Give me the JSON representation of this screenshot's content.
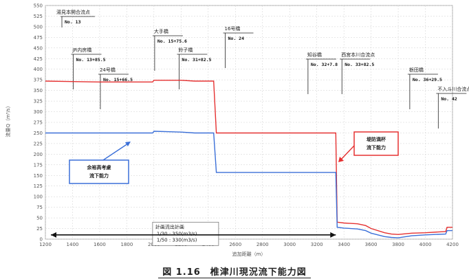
{
  "caption": "図 1.16　椎津川現況流下能力図",
  "colors": {
    "levee": "#e53030",
    "margin": "#3a6fd8",
    "frame": "#888888",
    "grid": "#cfcfcf"
  },
  "chart_data": {
    "type": "line",
    "xlabel": "追加距離（m）",
    "ylabel": "流量Q（m³/s）",
    "xlim": [
      1200,
      4200
    ],
    "ylim": [
      0,
      550
    ],
    "x_ticks": [
      "1200",
      "1400",
      "1600",
      "1800",
      "2000",
      "2200",
      "2400",
      "2600",
      "2800",
      "3000",
      "3200",
      "3400",
      "3600",
      "3800",
      "4000",
      "4200"
    ],
    "y_ticks": [
      "0",
      "25",
      "50",
      "75",
      "100",
      "125",
      "150",
      "175",
      "200",
      "225",
      "250",
      "275",
      "300",
      "325",
      "350",
      "375",
      "400",
      "425",
      "450",
      "475",
      "500",
      "525",
      "550"
    ],
    "series": [
      {
        "name": "堤防満杯流下能力",
        "x": [
          1200,
          1400,
          1600,
          1800,
          1990,
          2000,
          2200,
          2300,
          2440,
          2460,
          3340,
          3350,
          3400,
          3500,
          3560,
          3600,
          3700,
          3750,
          3800,
          3900,
          4000,
          4150,
          4160,
          4200
        ],
        "y": [
          372,
          371,
          370,
          370,
          370,
          374,
          374,
          372,
          372,
          250,
          250,
          40,
          38,
          36,
          32,
          25,
          15,
          12,
          11,
          14,
          15,
          18,
          28,
          28
        ]
      },
      {
        "name": "余裕高考慮流下能力",
        "x": [
          1200,
          1400,
          1600,
          1800,
          1990,
          2000,
          2200,
          2300,
          2440,
          2460,
          3340,
          3350,
          3400,
          3500,
          3560,
          3600,
          3700,
          3750,
          3800,
          3900,
          4000,
          4150,
          4160,
          4200
        ],
        "y": [
          250,
          250,
          250,
          250,
          250,
          254,
          252,
          250,
          250,
          157,
          157,
          28,
          26,
          24,
          20,
          14,
          6,
          4,
          3,
          8,
          10,
          12,
          20,
          20
        ]
      }
    ],
    "annotations": [
      {
        "name": "湯見本開合流点",
        "station": "No. 13",
        "x": 1200
      },
      {
        "name": "JR内房橋",
        "station": "No. 13+85.5",
        "x": 1390
      },
      {
        "name": "24号橋",
        "station": "No. 15+66.5",
        "x": 1590
      },
      {
        "name": "大手橋",
        "station": "No. 15+75.6",
        "x": 1990
      },
      {
        "name": "鈴子橋",
        "station": "No. 31+82.5",
        "x": 2170
      },
      {
        "name": "16号橋",
        "station": "No. 24",
        "x": 2510
      },
      {
        "name": "知谷橋",
        "station": "No. 32+7.8",
        "x": 3120
      },
      {
        "name": "西宮本川合流点",
        "station": "No. 33+82.5",
        "x": 3370
      },
      {
        "name": "栃田橋",
        "station": "No. 36+29.5",
        "x": 3870
      },
      {
        "name": "不入斗川合流点",
        "station": "No. 42",
        "x": 4080
      }
    ],
    "callouts": {
      "levee": "堤防満杯\n流下能力",
      "margin": "余裕高考慮\n流下能力"
    },
    "legend_box": {
      "title": "計画流出計画",
      "lines": [
        "1/30 : 350(m3/s)",
        "1/50 : 330(m3/s)"
      ]
    },
    "range_arrow": [
      1200,
      3340
    ]
  }
}
